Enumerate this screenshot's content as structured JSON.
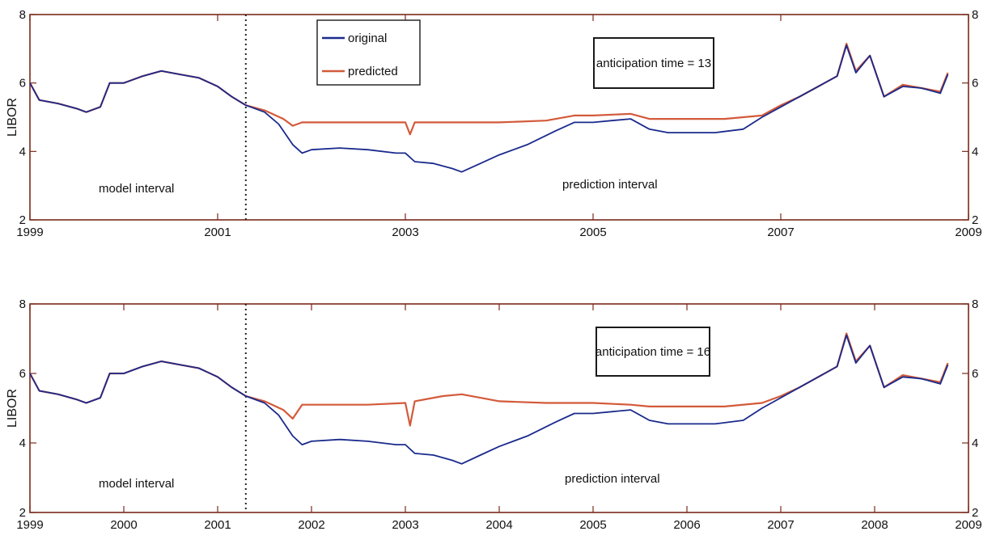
{
  "chart_data": [
    {
      "type": "line",
      "ylabel": "LIBOR",
      "xlim": [
        1999,
        2009
      ],
      "ylim": [
        2,
        8
      ],
      "x_ticks": [
        "1999",
        "2001",
        "2003",
        "2005",
        "2007",
        "2009"
      ],
      "y_ticks": [
        "2",
        "4",
        "6",
        "8"
      ],
      "model_end": 2001.3,
      "annotations": {
        "anticipation": "anticipation time = 13",
        "model_interval": "model interval",
        "prediction_interval": "prediction interval"
      },
      "legend": {
        "position": "top-center",
        "entries": [
          "original",
          "predicted"
        ]
      },
      "series": [
        {
          "name": "original",
          "color": "#1a2a8c",
          "points": [
            [
              1999.0,
              6.0
            ],
            [
              1999.1,
              5.5
            ],
            [
              1999.3,
              5.4
            ],
            [
              1999.5,
              5.25
            ],
            [
              1999.6,
              5.15
            ],
            [
              1999.75,
              5.3
            ],
            [
              1999.85,
              6.0
            ],
            [
              2000.0,
              6.0
            ],
            [
              2000.2,
              6.2
            ],
            [
              2000.4,
              6.35
            ],
            [
              2000.6,
              6.25
            ],
            [
              2000.8,
              6.15
            ],
            [
              2001.0,
              5.9
            ],
            [
              2001.15,
              5.6
            ],
            [
              2001.3,
              5.35
            ],
            [
              2001.5,
              5.15
            ],
            [
              2001.65,
              4.8
            ],
            [
              2001.8,
              4.2
            ],
            [
              2001.9,
              3.95
            ],
            [
              2002.0,
              4.05
            ],
            [
              2002.3,
              4.1
            ],
            [
              2002.6,
              4.05
            ],
            [
              2002.9,
              3.95
            ],
            [
              2003.0,
              3.95
            ],
            [
              2003.1,
              3.7
            ],
            [
              2003.3,
              3.65
            ],
            [
              2003.5,
              3.5
            ],
            [
              2003.6,
              3.4
            ],
            [
              2003.8,
              3.65
            ],
            [
              2004.0,
              3.9
            ],
            [
              2004.3,
              4.2
            ],
            [
              2004.6,
              4.6
            ],
            [
              2004.8,
              4.85
            ],
            [
              2005.0,
              4.85
            ],
            [
              2005.2,
              4.9
            ],
            [
              2005.4,
              4.95
            ],
            [
              2005.6,
              4.65
            ],
            [
              2005.8,
              4.55
            ],
            [
              2006.0,
              4.55
            ],
            [
              2006.3,
              4.55
            ],
            [
              2006.6,
              4.65
            ],
            [
              2006.8,
              5.0
            ],
            [
              2007.0,
              5.3
            ],
            [
              2007.2,
              5.6
            ],
            [
              2007.4,
              5.9
            ],
            [
              2007.6,
              6.2
            ],
            [
              2007.7,
              7.1
            ],
            [
              2007.8,
              6.3
            ],
            [
              2007.95,
              6.8
            ],
            [
              2008.1,
              5.6
            ],
            [
              2008.3,
              5.9
            ],
            [
              2008.5,
              5.85
            ],
            [
              2008.7,
              5.7
            ],
            [
              2008.78,
              6.25
            ]
          ]
        },
        {
          "name": "predicted",
          "color": "#d35a3a",
          "points": [
            [
              1999.0,
              6.0
            ],
            [
              1999.1,
              5.5
            ],
            [
              1999.3,
              5.4
            ],
            [
              1999.5,
              5.25
            ],
            [
              1999.6,
              5.15
            ],
            [
              1999.75,
              5.3
            ],
            [
              1999.85,
              6.0
            ],
            [
              2000.0,
              6.0
            ],
            [
              2000.2,
              6.2
            ],
            [
              2000.4,
              6.35
            ],
            [
              2000.6,
              6.25
            ],
            [
              2000.8,
              6.15
            ],
            [
              2001.0,
              5.9
            ],
            [
              2001.15,
              5.6
            ],
            [
              2001.3,
              5.35
            ],
            [
              2001.5,
              5.2
            ],
            [
              2001.7,
              4.95
            ],
            [
              2001.8,
              4.75
            ],
            [
              2001.9,
              4.85
            ],
            [
              2002.2,
              4.85
            ],
            [
              2002.6,
              4.85
            ],
            [
              2003.0,
              4.85
            ],
            [
              2003.05,
              4.5
            ],
            [
              2003.1,
              4.85
            ],
            [
              2003.5,
              4.85
            ],
            [
              2004.0,
              4.85
            ],
            [
              2004.5,
              4.9
            ],
            [
              2004.8,
              5.05
            ],
            [
              2005.0,
              5.05
            ],
            [
              2005.4,
              5.1
            ],
            [
              2005.6,
              4.95
            ],
            [
              2006.0,
              4.95
            ],
            [
              2006.4,
              4.95
            ],
            [
              2006.8,
              5.05
            ],
            [
              2007.0,
              5.35
            ],
            [
              2007.2,
              5.6
            ],
            [
              2007.4,
              5.9
            ],
            [
              2007.6,
              6.2
            ],
            [
              2007.7,
              7.15
            ],
            [
              2007.8,
              6.35
            ],
            [
              2007.95,
              6.8
            ],
            [
              2008.1,
              5.6
            ],
            [
              2008.3,
              5.95
            ],
            [
              2008.5,
              5.85
            ],
            [
              2008.7,
              5.75
            ],
            [
              2008.78,
              6.3
            ]
          ]
        }
      ]
    },
    {
      "type": "line",
      "ylabel": "LIBOR",
      "xlim": [
        1999,
        2009
      ],
      "ylim": [
        2,
        8
      ],
      "x_ticks": [
        "1999",
        "2000",
        "2001",
        "2002",
        "2003",
        "2004",
        "2005",
        "2006",
        "2007",
        "2008",
        "2009"
      ],
      "y_ticks": [
        "2",
        "4",
        "6",
        "8"
      ],
      "model_end": 2001.3,
      "annotations": {
        "anticipation": "anticipation time = 16",
        "model_interval": "model interval",
        "prediction_interval": "prediction interval"
      },
      "series": [
        {
          "name": "original",
          "color": "#1a2a8c",
          "points": [
            [
              1999.0,
              6.0
            ],
            [
              1999.1,
              5.5
            ],
            [
              1999.3,
              5.4
            ],
            [
              1999.5,
              5.25
            ],
            [
              1999.6,
              5.15
            ],
            [
              1999.75,
              5.3
            ],
            [
              1999.85,
              6.0
            ],
            [
              2000.0,
              6.0
            ],
            [
              2000.2,
              6.2
            ],
            [
              2000.4,
              6.35
            ],
            [
              2000.6,
              6.25
            ],
            [
              2000.8,
              6.15
            ],
            [
              2001.0,
              5.9
            ],
            [
              2001.15,
              5.6
            ],
            [
              2001.3,
              5.35
            ],
            [
              2001.5,
              5.15
            ],
            [
              2001.65,
              4.8
            ],
            [
              2001.8,
              4.2
            ],
            [
              2001.9,
              3.95
            ],
            [
              2002.0,
              4.05
            ],
            [
              2002.3,
              4.1
            ],
            [
              2002.6,
              4.05
            ],
            [
              2002.9,
              3.95
            ],
            [
              2003.0,
              3.95
            ],
            [
              2003.1,
              3.7
            ],
            [
              2003.3,
              3.65
            ],
            [
              2003.5,
              3.5
            ],
            [
              2003.6,
              3.4
            ],
            [
              2003.8,
              3.65
            ],
            [
              2004.0,
              3.9
            ],
            [
              2004.3,
              4.2
            ],
            [
              2004.6,
              4.6
            ],
            [
              2004.8,
              4.85
            ],
            [
              2005.0,
              4.85
            ],
            [
              2005.2,
              4.9
            ],
            [
              2005.4,
              4.95
            ],
            [
              2005.6,
              4.65
            ],
            [
              2005.8,
              4.55
            ],
            [
              2006.0,
              4.55
            ],
            [
              2006.3,
              4.55
            ],
            [
              2006.6,
              4.65
            ],
            [
              2006.8,
              5.0
            ],
            [
              2007.0,
              5.3
            ],
            [
              2007.2,
              5.6
            ],
            [
              2007.4,
              5.9
            ],
            [
              2007.6,
              6.2
            ],
            [
              2007.7,
              7.1
            ],
            [
              2007.8,
              6.3
            ],
            [
              2007.95,
              6.8
            ],
            [
              2008.1,
              5.6
            ],
            [
              2008.3,
              5.9
            ],
            [
              2008.5,
              5.85
            ],
            [
              2008.7,
              5.7
            ],
            [
              2008.78,
              6.25
            ]
          ]
        },
        {
          "name": "predicted",
          "color": "#d35a3a",
          "points": [
            [
              1999.0,
              6.0
            ],
            [
              1999.1,
              5.5
            ],
            [
              1999.3,
              5.4
            ],
            [
              1999.5,
              5.25
            ],
            [
              1999.6,
              5.15
            ],
            [
              1999.75,
              5.3
            ],
            [
              1999.85,
              6.0
            ],
            [
              2000.0,
              6.0
            ],
            [
              2000.2,
              6.2
            ],
            [
              2000.4,
              6.35
            ],
            [
              2000.6,
              6.25
            ],
            [
              2000.8,
              6.15
            ],
            [
              2001.0,
              5.9
            ],
            [
              2001.15,
              5.6
            ],
            [
              2001.3,
              5.35
            ],
            [
              2001.5,
              5.2
            ],
            [
              2001.7,
              4.95
            ],
            [
              2001.8,
              4.7
            ],
            [
              2001.9,
              5.1
            ],
            [
              2002.2,
              5.1
            ],
            [
              2002.6,
              5.1
            ],
            [
              2003.0,
              5.15
            ],
            [
              2003.05,
              4.5
            ],
            [
              2003.1,
              5.2
            ],
            [
              2003.4,
              5.35
            ],
            [
              2003.6,
              5.4
            ],
            [
              2003.8,
              5.3
            ],
            [
              2004.0,
              5.2
            ],
            [
              2004.5,
              5.15
            ],
            [
              2004.8,
              5.15
            ],
            [
              2005.0,
              5.15
            ],
            [
              2005.4,
              5.1
            ],
            [
              2005.6,
              5.05
            ],
            [
              2006.0,
              5.05
            ],
            [
              2006.4,
              5.05
            ],
            [
              2006.8,
              5.15
            ],
            [
              2007.0,
              5.35
            ],
            [
              2007.2,
              5.6
            ],
            [
              2007.4,
              5.9
            ],
            [
              2007.6,
              6.2
            ],
            [
              2007.7,
              7.15
            ],
            [
              2007.8,
              6.35
            ],
            [
              2007.95,
              6.8
            ],
            [
              2008.1,
              5.6
            ],
            [
              2008.3,
              5.95
            ],
            [
              2008.5,
              5.85
            ],
            [
              2008.7,
              5.75
            ],
            [
              2008.78,
              6.3
            ]
          ]
        }
      ]
    }
  ]
}
